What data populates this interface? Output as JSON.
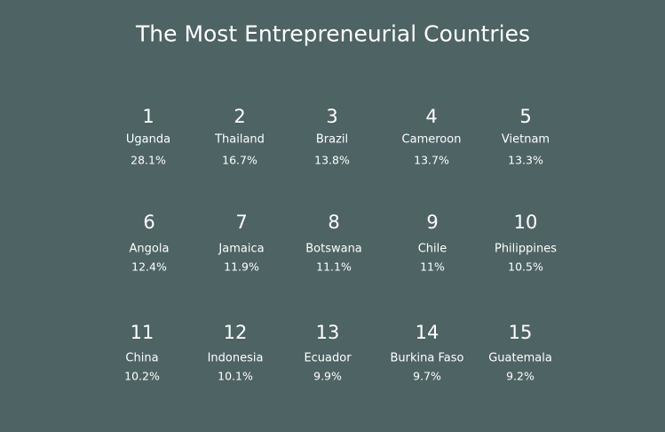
{
  "title": "The Most Entrepreneurial Countries",
  "items": [
    {
      "rank": "1",
      "country": "Uganda",
      "share": "28.1%"
    },
    {
      "rank": "2",
      "country": "Thailand",
      "share": "16.7%"
    },
    {
      "rank": "3",
      "country": "Brazil",
      "share": "13.8%"
    },
    {
      "rank": "4",
      "country": "Cameroon",
      "share": "13.7%"
    },
    {
      "rank": "5",
      "country": "Vietnam",
      "share": "13.3%"
    },
    {
      "rank": "6",
      "country": "Angola",
      "share": "12.4%"
    },
    {
      "rank": "7",
      "country": "Jamaica",
      "share": "11.9%"
    },
    {
      "rank": "8",
      "country": "Botswana",
      "share": "11.1%"
    },
    {
      "rank": "9",
      "country": "Chile",
      "share": "11%"
    },
    {
      "rank": "10",
      "country": "Philippines",
      "share": "10.5%"
    },
    {
      "rank": "11",
      "country": "China",
      "share": "10.2%"
    },
    {
      "rank": "12",
      "country": "Indonesia",
      "share": "10.1%"
    },
    {
      "rank": "13",
      "country": "Ecuador",
      "share": "9.9%"
    },
    {
      "rank": "14",
      "country": "Burkina Faso",
      "share": "9.7%"
    },
    {
      "rank": "15",
      "country": "Guatemala",
      "share": "9.2%"
    }
  ]
}
